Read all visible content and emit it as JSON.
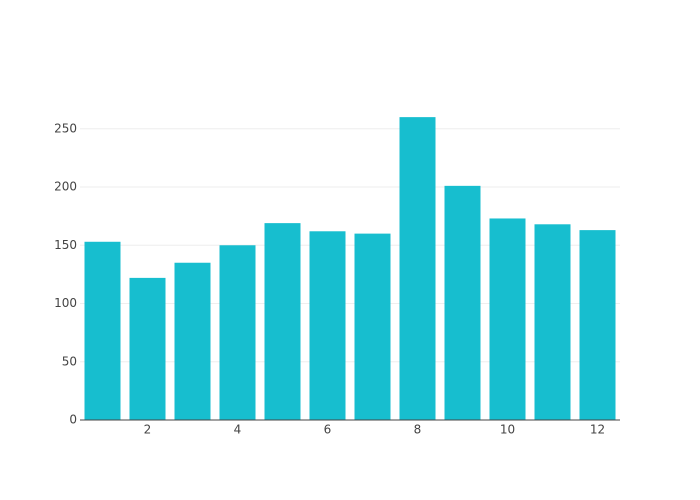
{
  "chart_data": {
    "type": "bar",
    "x": [
      1,
      2,
      3,
      4,
      5,
      6,
      7,
      8,
      9,
      10,
      11,
      12
    ],
    "values": [
      153,
      122,
      135,
      150,
      169,
      162,
      160,
      260,
      201,
      173,
      168,
      163
    ],
    "color": "#17becf",
    "xlim": [
      0.5,
      12.5
    ],
    "xticks": [
      2,
      4,
      6,
      8,
      10,
      12
    ],
    "ylim": [
      0,
      274.7
    ],
    "yticks": [
      0,
      50,
      100,
      150,
      200,
      250
    ],
    "grid": true
  }
}
